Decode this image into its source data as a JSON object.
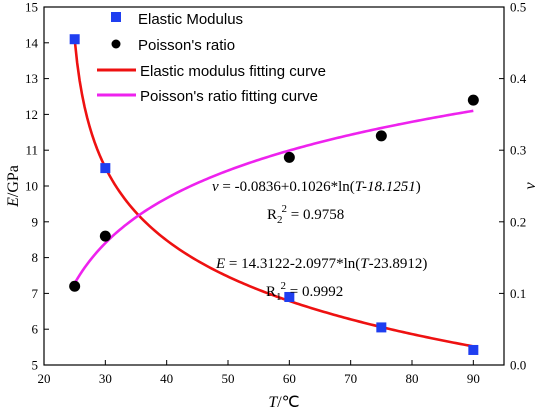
{
  "chart_data": {
    "type": "scatter",
    "xlabel_var": "T",
    "xlabel_unit": "/℃",
    "ylabel_var": "E",
    "ylabel_unit": "/GPa",
    "y2label": "ν",
    "xlim": [
      20,
      95
    ],
    "ylim": [
      5,
      15
    ],
    "y2lim": [
      0.0,
      0.5
    ],
    "xticks": [
      20,
      30,
      40,
      50,
      60,
      70,
      80,
      90
    ],
    "yticks": [
      5,
      6,
      7,
      8,
      9,
      10,
      11,
      12,
      13,
      14,
      15
    ],
    "y2ticks": [
      0.0,
      0.1,
      0.2,
      0.3,
      0.4,
      0.5
    ],
    "grid": false,
    "legend_position": "top-left",
    "series": [
      {
        "name": "Elastic Modulus",
        "kind": "scatter",
        "marker": "square",
        "color": "#1f3ef0",
        "axis": "left",
        "points": [
          [
            25,
            14.1
          ],
          [
            30,
            10.5
          ],
          [
            60,
            6.9
          ],
          [
            75,
            6.05
          ],
          [
            90,
            5.42
          ]
        ]
      },
      {
        "name": "Poisson's ratio",
        "kind": "scatter",
        "marker": "circle",
        "color": "#000000",
        "axis": "right",
        "points": [
          [
            25,
            0.11
          ],
          [
            30,
            0.18
          ],
          [
            60,
            0.29
          ],
          [
            75,
            0.32
          ],
          [
            90,
            0.37
          ]
        ]
      },
      {
        "name": "Elastic modulus fitting curve",
        "kind": "line",
        "color": "#ee1111",
        "axis": "left",
        "fit": {
          "a": 14.3122,
          "b": -2.0977,
          "c": 23.8912
        },
        "x_range": [
          25,
          90
        ]
      },
      {
        "name": "Poisson's ratio fitting curve",
        "kind": "line",
        "color": "#ee22ee",
        "axis": "right",
        "fit": {
          "a": -0.0836,
          "b": 0.1026,
          "c": 18.1251
        },
        "x_range": [
          25,
          90
        ]
      }
    ],
    "annotations": {
      "nu_eq_lhs": "ν",
      "nu_eq_mid": " = -0.0836+0.1026*ln(",
      "nu_eq_T": "T",
      "nu_eq_c": "-18.1251",
      "nu_eq_end": ")",
      "nu_r2_label": "R",
      "nu_r2_sub": "2",
      "nu_r2_sup": "2",
      "nu_r2_val": " = 0.9758",
      "e_eq_lhs": "E",
      "e_eq_mid": " = 14.3122-2.0977*ln(",
      "e_eq_T": "T",
      "e_eq_end": "-23.8912)",
      "e_r2_label": "R",
      "e_r2_sub": "1",
      "e_r2_sup": "2",
      "e_r2_val": " = 0.9992"
    }
  }
}
